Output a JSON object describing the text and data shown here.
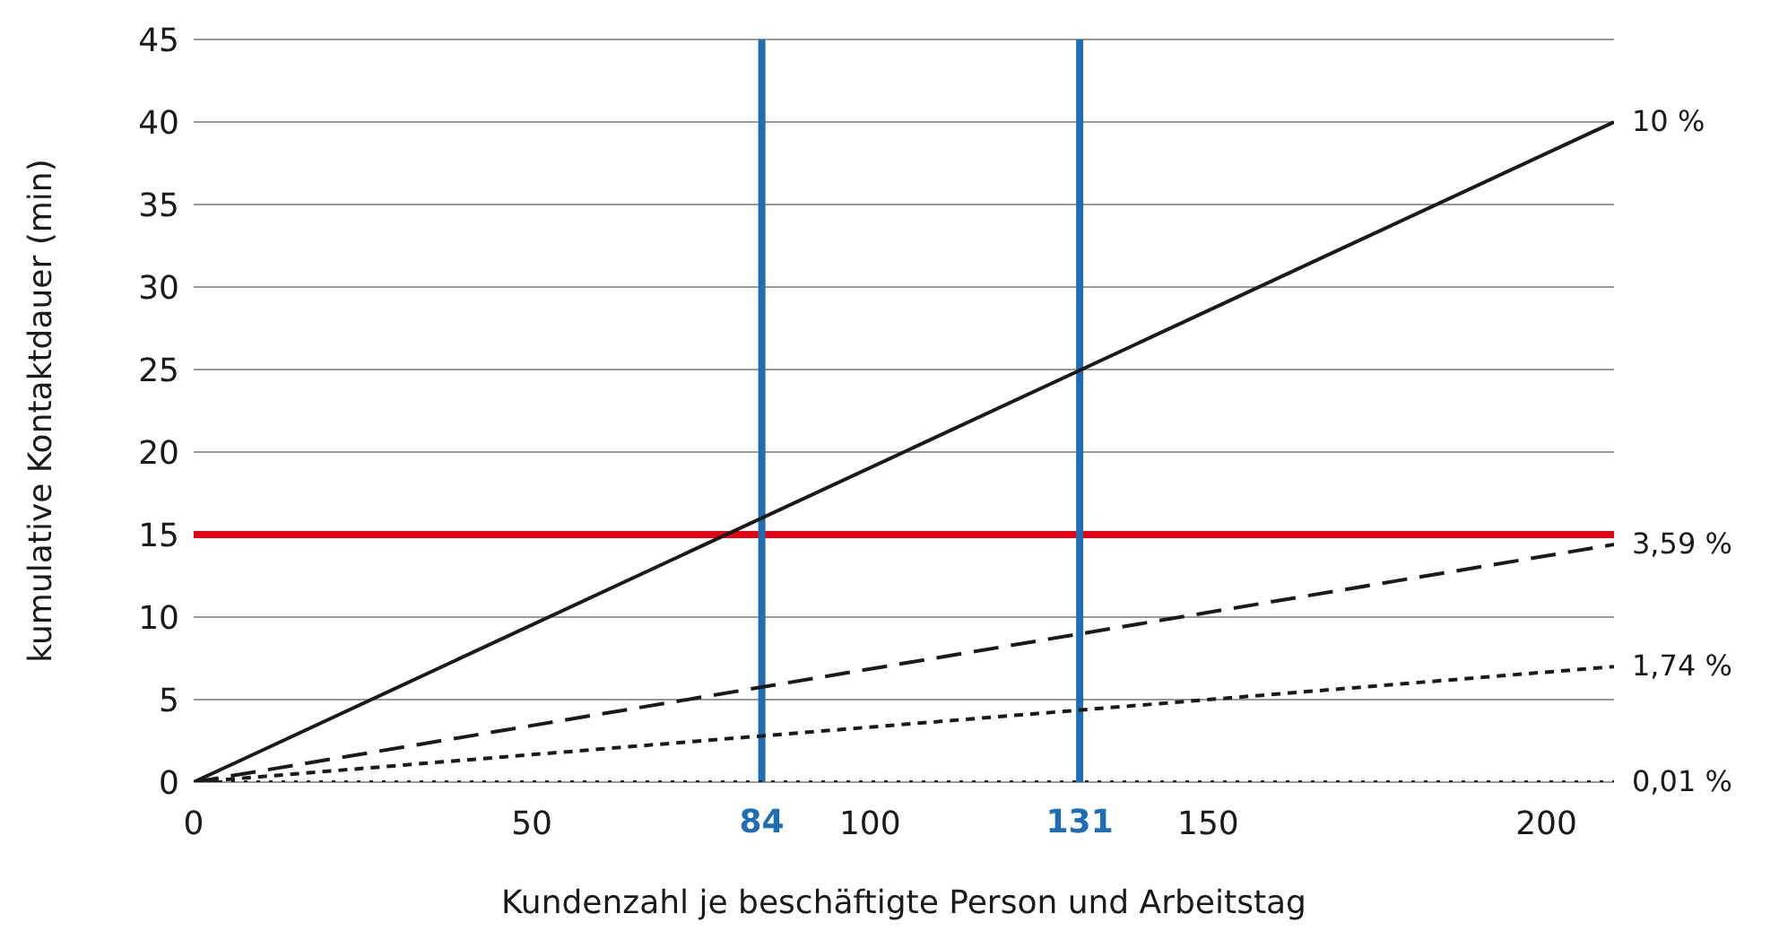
{
  "chart_data": {
    "type": "line",
    "xlabel": "Kundenzahl je beschäftigte Person und Arbeitstag",
    "ylabel": "kumulative Kontaktdauer (min)",
    "x": [
      0,
      210
    ],
    "series": [
      {
        "name": "10 %",
        "color": "#1a1a1a",
        "values": [
          0,
          40
        ],
        "line_style": "solid"
      },
      {
        "name": "3,59 %",
        "color": "#1a1a1a",
        "values": [
          0,
          14.4
        ],
        "line_style": "dashed"
      },
      {
        "name": "1,74 %",
        "color": "#1a1a1a",
        "values": [
          0,
          7
        ],
        "line_style": "short-dashed"
      },
      {
        "name": "0,01 %",
        "color": "#1a1a1a",
        "values": [
          0,
          0
        ],
        "line_style": "dotted"
      }
    ],
    "xlim": [
      0,
      210
    ],
    "xticks": [
      0,
      50,
      100,
      150,
      200
    ],
    "ylim": [
      0,
      45
    ],
    "yticks": [
      0,
      5,
      10,
      15,
      20,
      25,
      30,
      35,
      40,
      45
    ],
    "ref_lines": [
      {
        "axis": "y",
        "value": 15,
        "color": "#e30613"
      },
      {
        "axis": "x",
        "value": 84,
        "label": "84",
        "color": "#1f6db5"
      },
      {
        "axis": "x",
        "value": 131,
        "label": "131",
        "color": "#1f6db5"
      }
    ],
    "grid": "y",
    "legend": false,
    "marker": "none"
  }
}
